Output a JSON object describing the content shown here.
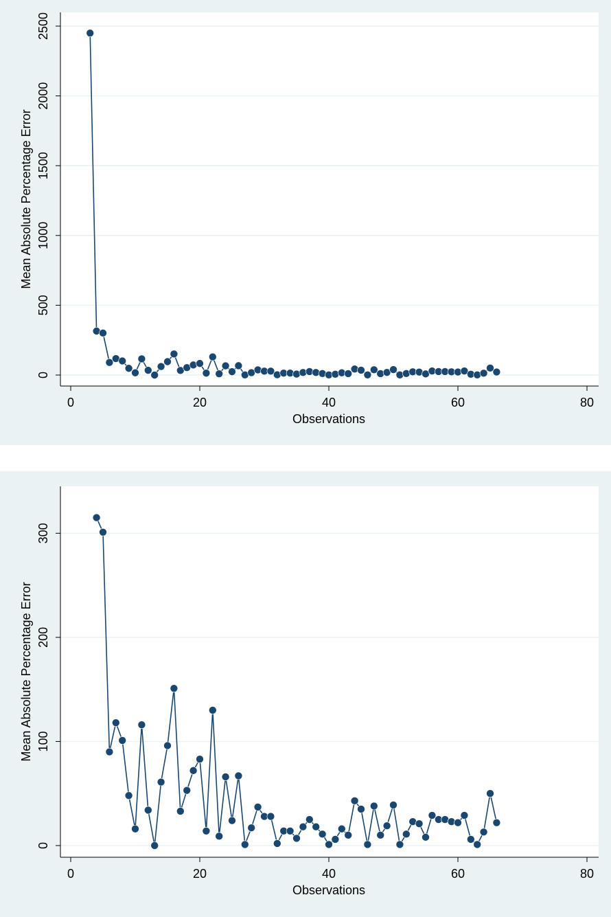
{
  "chart_data": [
    {
      "type": "line",
      "markers": true,
      "xlabel": "Observations",
      "ylabel": "Mean Absolute Percentage Error",
      "xlim": [
        0,
        80
      ],
      "ylim": [
        0,
        2500
      ],
      "xticks": [
        0,
        20,
        40,
        60,
        80
      ],
      "yticks": [
        0,
        500,
        1000,
        1500,
        2000,
        2500
      ],
      "grid": true,
      "colors": {
        "series": "#1a476f",
        "panel": "#eaf2f3",
        "plot": "#ffffff",
        "grid": "#eaf2f3"
      },
      "series": [
        {
          "x": [
            3,
            4,
            5,
            6,
            7,
            8,
            9,
            10,
            11,
            12,
            13,
            14,
            15,
            16,
            17,
            18,
            19,
            20,
            21,
            22,
            23,
            24,
            25,
            26,
            27,
            28,
            29,
            30,
            31,
            32,
            33,
            34,
            35,
            36,
            37,
            38,
            39,
            40,
            41,
            42,
            43,
            44,
            45,
            46,
            47,
            48,
            49,
            50,
            51,
            52,
            53,
            54,
            55,
            56,
            57,
            58,
            59,
            60,
            61,
            62,
            63,
            64,
            65,
            66
          ],
          "y": [
            2450,
            315,
            301,
            90,
            118,
            101,
            48,
            16,
            116,
            34,
            0,
            61,
            96,
            151,
            33,
            53,
            72,
            83,
            14,
            130,
            9,
            66,
            24,
            67,
            1,
            17,
            37,
            28,
            28,
            2,
            14,
            14,
            7,
            18,
            25,
            18,
            11,
            1,
            6,
            16,
            10,
            43,
            35,
            1,
            38,
            10,
            19,
            39,
            1,
            11,
            23,
            21,
            8,
            29,
            25,
            25,
            23,
            22,
            29,
            6,
            1,
            13,
            50,
            22
          ]
        }
      ]
    },
    {
      "type": "line",
      "markers": true,
      "xlabel": "Observations",
      "ylabel": "Mean Absolute Percentage Error",
      "xlim": [
        0,
        80
      ],
      "ylim": [
        0,
        320
      ],
      "xticks": [
        0,
        20,
        40,
        60,
        80
      ],
      "yticks": [
        0,
        100,
        200,
        300
      ],
      "grid": true,
      "colors": {
        "series": "#1a476f",
        "panel": "#eaf2f3",
        "plot": "#ffffff",
        "grid": "#eaf2f3"
      },
      "series": [
        {
          "x": [
            4,
            5,
            6,
            7,
            8,
            9,
            10,
            11,
            12,
            13,
            14,
            15,
            16,
            17,
            18,
            19,
            20,
            21,
            22,
            23,
            24,
            25,
            26,
            27,
            28,
            29,
            30,
            31,
            32,
            33,
            34,
            35,
            36,
            37,
            38,
            39,
            40,
            41,
            42,
            43,
            44,
            45,
            46,
            47,
            48,
            49,
            50,
            51,
            52,
            53,
            54,
            55,
            56,
            57,
            58,
            59,
            60,
            61,
            62,
            63,
            64,
            65,
            66
          ],
          "y": [
            315,
            301,
            90,
            118,
            101,
            48,
            16,
            116,
            34,
            0,
            61,
            96,
            151,
            33,
            53,
            72,
            83,
            14,
            130,
            9,
            66,
            24,
            67,
            1,
            17,
            37,
            28,
            28,
            2,
            14,
            14,
            7,
            18,
            25,
            18,
            11,
            1,
            6,
            16,
            10,
            43,
            35,
            1,
            38,
            10,
            19,
            39,
            1,
            11,
            23,
            21,
            8,
            29,
            25,
            25,
            23,
            22,
            29,
            6,
            1,
            13,
            50,
            22
          ]
        }
      ]
    }
  ]
}
